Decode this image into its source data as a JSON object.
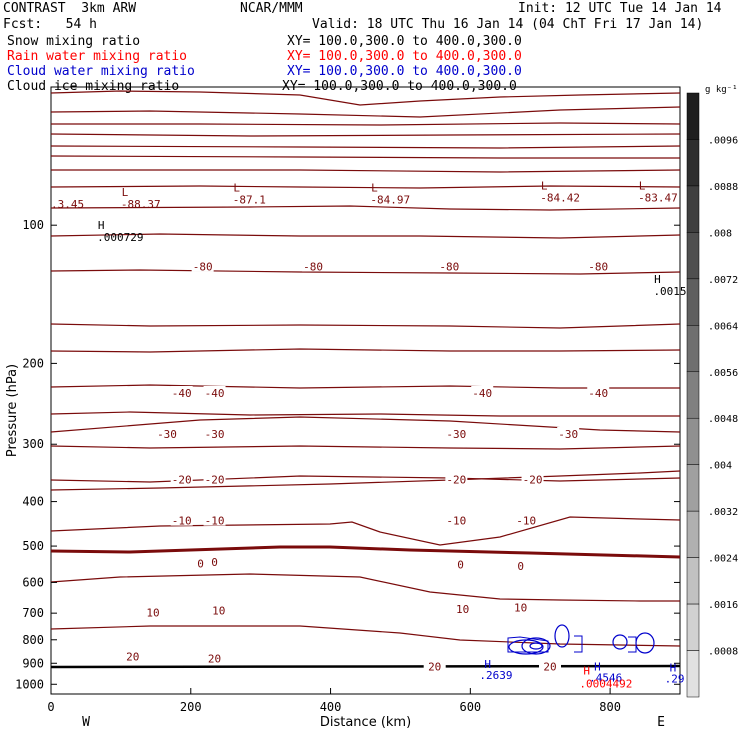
{
  "header": {
    "left1": "CONTRAST  3km ARW",
    "center1": "NCAR/MMM",
    "right1": "Init: 12 UTC Tue 14 Jan 14",
    "left2": "Fcst:   54 h",
    "right2": "Valid: 18 UTC Thu 16 Jan 14 (04 ChT Fri 17 Jan 14)"
  },
  "fields": [
    {
      "name": "Snow mixing ratio",
      "xy": "XY= 100.0,300.0 to 400.0,300.0",
      "color": "#000000"
    },
    {
      "name": "Rain water mixing ratio",
      "xy": "XY= 100.0,300.0 to 400.0,300.0",
      "color": "#ff0000"
    },
    {
      "name": "Cloud water mixing ratio",
      "xy": "XY= 100.0,300.0 to 400.0,300.0",
      "color": "#0000cc"
    },
    {
      "name": "Cloud ice mixing ratio",
      "xy": "XY= 100.0,300.0 to 400.0,300.0",
      "color": "#000000"
    }
  ],
  "colors": {
    "contour": "#7a0b0b",
    "cloud_water": "#0000cc",
    "rain": "#ff0000"
  },
  "chart_data": {
    "type": "contour",
    "xlabel": "Distance (km)",
    "ylabel": "Pressure (hPa)",
    "x_ticks": [
      0,
      200,
      400,
      600,
      800
    ],
    "xlim": [
      0,
      900
    ],
    "y_ticks": [
      100,
      200,
      300,
      400,
      500,
      600,
      700,
      800,
      900,
      1000
    ],
    "ylim": [
      1050,
      50
    ],
    "y_scale": "log",
    "x_end_labels": {
      "left": "W",
      "right": "E"
    },
    "colorbar": {
      "unit": "g kg⁻¹",
      "ticks": [
        ".0096",
        ".0088",
        ".008",
        ".0072",
        ".0064",
        ".0056",
        ".0048",
        ".004",
        ".0032",
        ".0024",
        ".0016",
        ".0008"
      ]
    },
    "temperature_labels": [
      {
        "text": "-80",
        "x": 217,
        "p": 123
      },
      {
        "text": "-80",
        "x": 375,
        "p": 123
      },
      {
        "text": "-80",
        "x": 570,
        "p": 123
      },
      {
        "text": "-80",
        "x": 783,
        "p": 123
      },
      {
        "text": "-40",
        "x": 187,
        "p": 232
      },
      {
        "text": "-40",
        "x": 234,
        "p": 232
      },
      {
        "text": "-40",
        "x": 617,
        "p": 232
      },
      {
        "text": "-40",
        "x": 783,
        "p": 232
      },
      {
        "text": "-30",
        "x": 166,
        "p": 285
      },
      {
        "text": "-30",
        "x": 234,
        "p": 285
      },
      {
        "text": "-30",
        "x": 580,
        "p": 285
      },
      {
        "text": "-30",
        "x": 740,
        "p": 285
      },
      {
        "text": "-20",
        "x": 187,
        "p": 358
      },
      {
        "text": "-20",
        "x": 234,
        "p": 358
      },
      {
        "text": "-20",
        "x": 580,
        "p": 358
      },
      {
        "text": "-20",
        "x": 689,
        "p": 358
      },
      {
        "text": "-10",
        "x": 187,
        "p": 440
      },
      {
        "text": "-10",
        "x": 234,
        "p": 440
      },
      {
        "text": "-10",
        "x": 580,
        "p": 440
      },
      {
        "text": "-10",
        "x": 680,
        "p": 440
      },
      {
        "text": "0",
        "x": 214,
        "p": 545
      },
      {
        "text": "0",
        "x": 234,
        "p": 542
      },
      {
        "text": "0",
        "x": 586,
        "p": 548
      },
      {
        "text": "0",
        "x": 672,
        "p": 552
      },
      {
        "text": "10",
        "x": 146,
        "p": 697
      },
      {
        "text": "10",
        "x": 240,
        "p": 690
      },
      {
        "text": "10",
        "x": 589,
        "p": 685
      },
      {
        "text": "10",
        "x": 672,
        "p": 681
      },
      {
        "text": "20",
        "x": 117,
        "p": 869
      },
      {
        "text": "20",
        "x": 234,
        "p": 879
      },
      {
        "text": "20",
        "x": 549,
        "p": 914
      },
      {
        "text": "20",
        "x": 714,
        "p": 914
      }
    ],
    "extrema_labels": [
      {
        "text": "-88.37",
        "x": 100,
        "p": 90,
        "marker": "L"
      },
      {
        "text": "-87.1",
        "x": 260,
        "p": 88,
        "marker": "L"
      },
      {
        "text": "-84.97",
        "x": 457,
        "p": 88,
        "marker": "L"
      },
      {
        "text": "-84.42",
        "x": 700,
        "p": 87,
        "marker": "L"
      },
      {
        "text": "-83.47",
        "x": 840,
        "p": 87,
        "marker": "L"
      },
      {
        "text": ".3.45",
        "x": 0,
        "p": 90,
        "marker": ""
      },
      {
        "text": ".000729",
        "x": 66,
        "p": 106,
        "marker": "H"
      },
      {
        "text": ".0015",
        "x": 862,
        "p": 139,
        "marker": "H"
      }
    ],
    "cloud_water_labels": [
      {
        "text": ".2639",
        "x": 613,
        "p": 968,
        "marker": "H"
      },
      {
        "text": ".4546",
        "x": 770,
        "p": 982,
        "marker": "H"
      },
      {
        "text": ".29",
        "x": 878,
        "p": 985,
        "marker": "H"
      }
    ],
    "rain_labels": [
      {
        "text": ".0004492",
        "x": 756,
        "p": 1000,
        "marker": "H"
      }
    ]
  }
}
